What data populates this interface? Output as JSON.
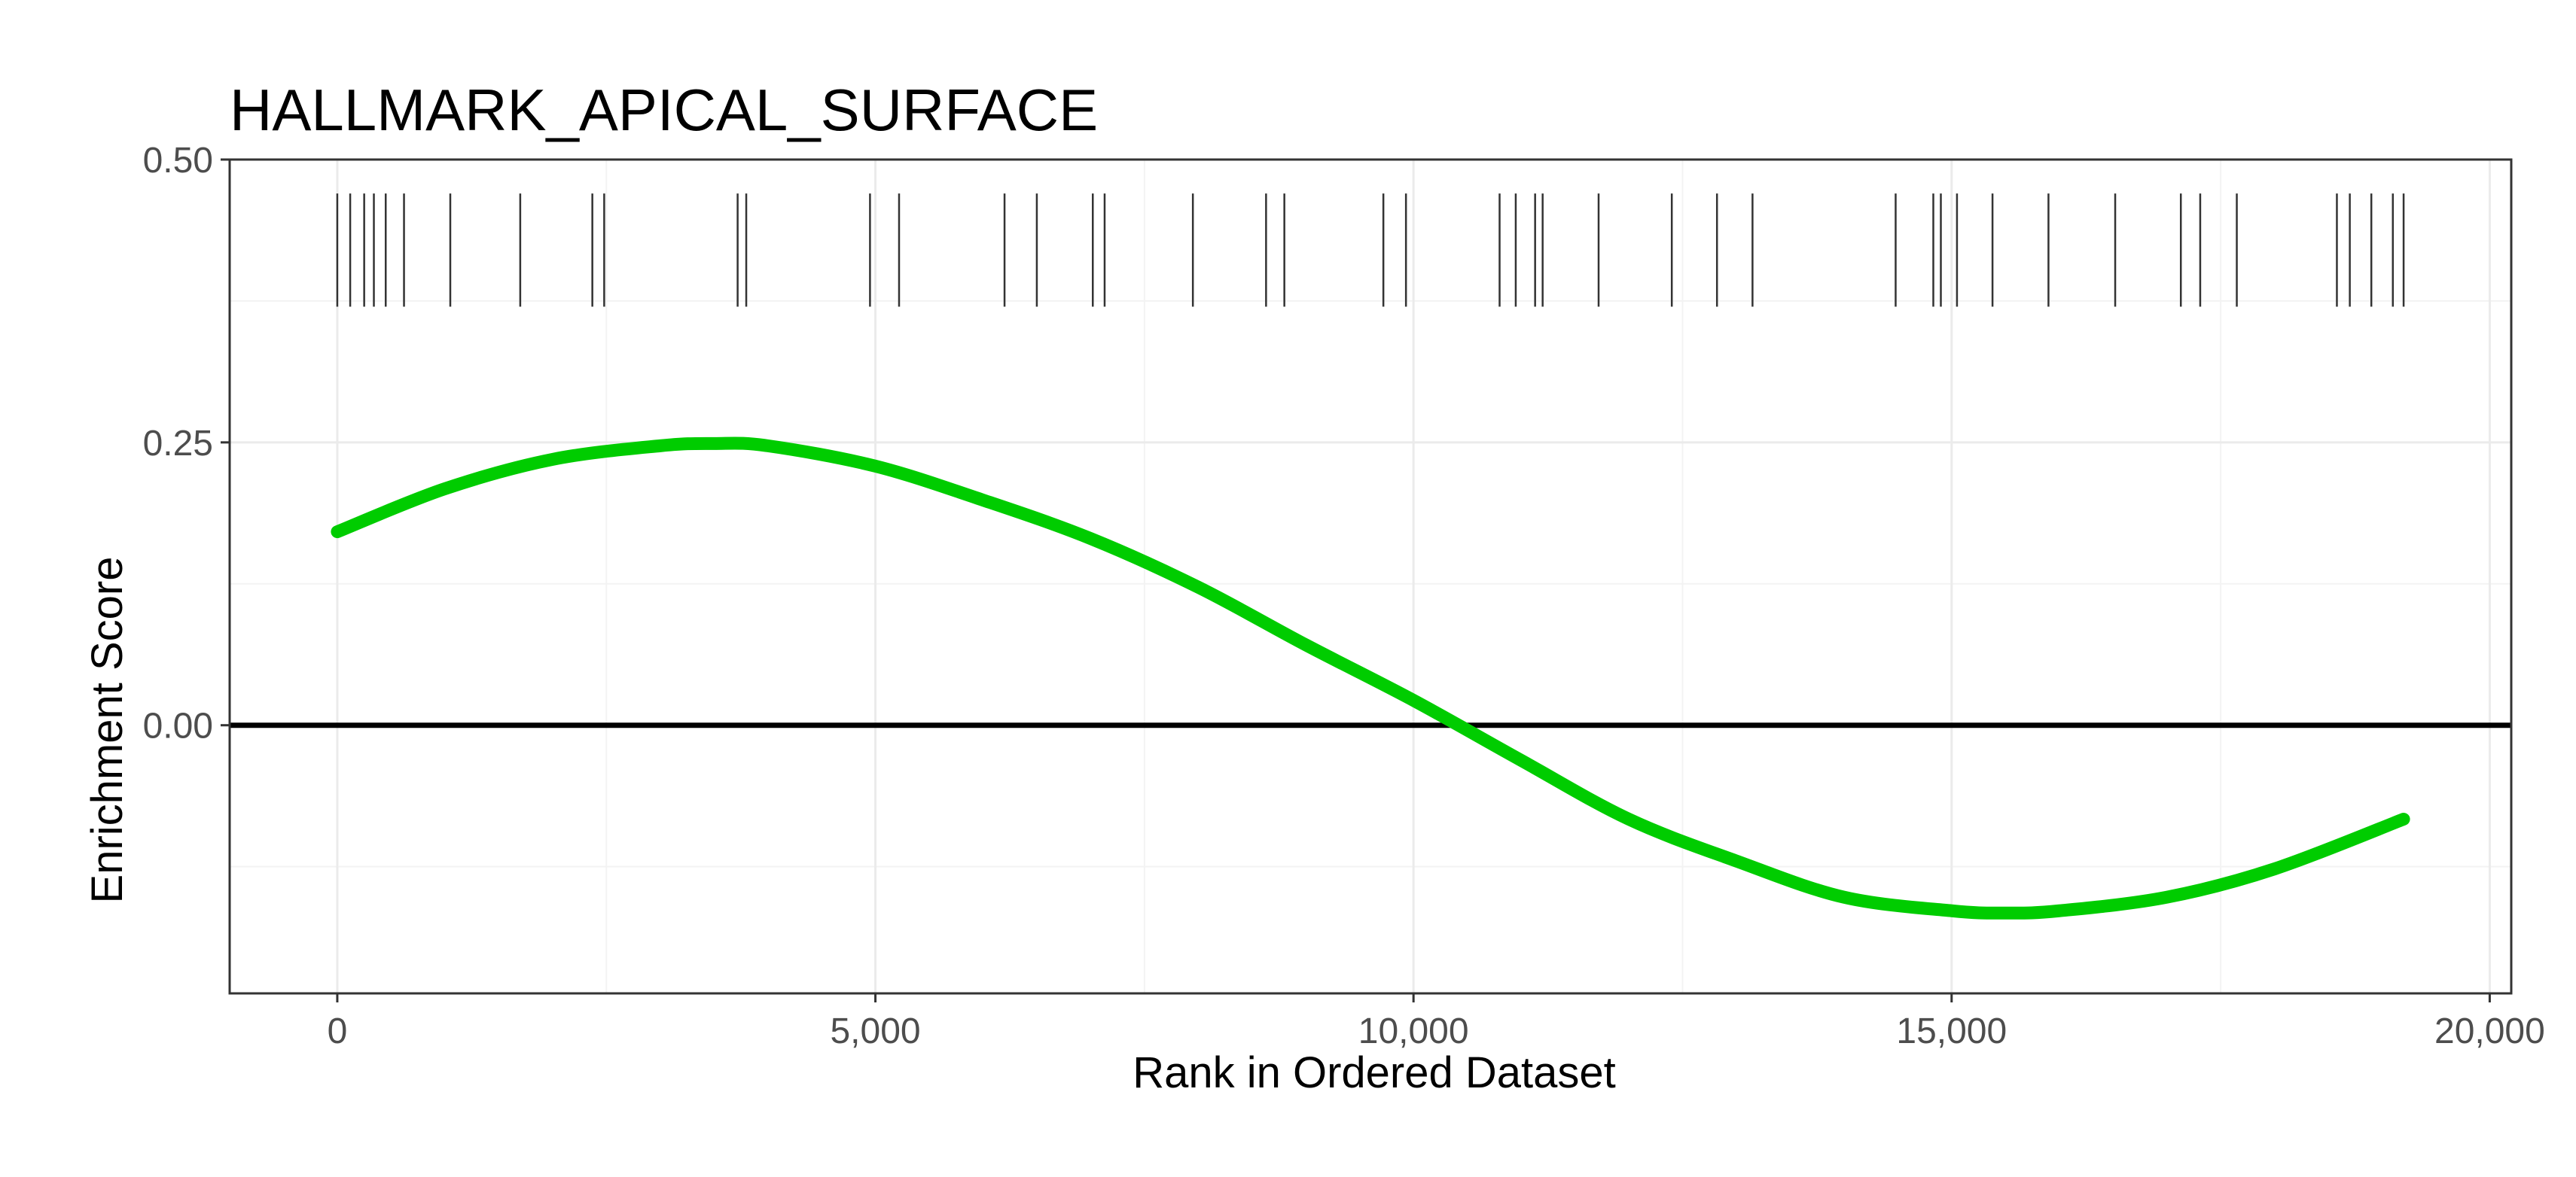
{
  "chart_data": {
    "type": "line",
    "title": "HALLMARK_APICAL_SURFACE",
    "xlabel": "Rank in Ordered Dataset",
    "ylabel": "Enrichment Score",
    "xlim": [
      -1000,
      20200
    ],
    "ylim": [
      -0.237,
      0.5
    ],
    "x_ticks": [
      0,
      5000,
      10000,
      15000,
      20000
    ],
    "x_tick_labels": [
      "0",
      "5,000",
      "10,000",
      "15,000",
      "20,000"
    ],
    "y_ticks": [
      0.0,
      0.25,
      0.5
    ],
    "y_tick_labels": [
      "0.00",
      "0.25",
      "0.50"
    ],
    "grid": true,
    "legend": "none",
    "reference_line_y": 0.0,
    "series": [
      {
        "color": "#00cc00",
        "x": [
          0,
          1000,
          2000,
          3000,
          3500,
          4000,
          5000,
          6000,
          7000,
          8000,
          9000,
          10000,
          11000,
          12000,
          13000,
          14000,
          15000,
          15500,
          16000,
          17000,
          18000,
          19200
        ],
        "y": [
          0.171,
          0.209,
          0.235,
          0.247,
          0.249,
          0.247,
          0.229,
          0.199,
          0.165,
          0.122,
          0.071,
          0.022,
          -0.031,
          -0.083,
          -0.12,
          -0.152,
          -0.164,
          -0.166,
          -0.164,
          -0.152,
          -0.127,
          -0.083
        ]
      }
    ],
    "hit_positions": [
      0,
      120,
      250,
      340,
      450,
      620,
      1050,
      1700,
      2370,
      2480,
      3720,
      3800,
      4950,
      5220,
      6200,
      6500,
      7020,
      7130,
      7950,
      8630,
      8800,
      9720,
      9930,
      10800,
      10950,
      11130,
      11200,
      11720,
      12400,
      12820,
      13150,
      14480,
      14830,
      14900,
      15050,
      15380,
      15900,
      16520,
      17130,
      17310,
      17650,
      18580,
      18700,
      18900,
      19100,
      19200
    ],
    "hit_band": [
      0.37,
      0.47
    ]
  }
}
